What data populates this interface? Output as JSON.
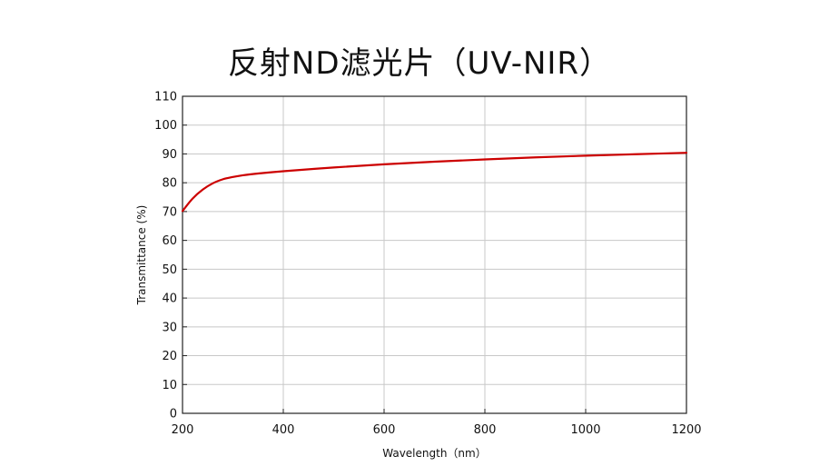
{
  "chart_data": {
    "type": "line",
    "title": "反射ND滤光片（UV-NIR）",
    "xlabel": "Wavelength（nm）",
    "ylabel": "Transmittance (%)",
    "xlim": [
      200,
      1200
    ],
    "ylim": [
      0,
      110
    ],
    "xticks": [
      200,
      400,
      600,
      800,
      1000,
      1200
    ],
    "yticks": [
      0,
      10,
      20,
      30,
      40,
      50,
      60,
      70,
      80,
      90,
      100,
      110
    ],
    "grid": true,
    "legend": "none",
    "series": [
      {
        "color": "#cc0000",
        "x": [
          200,
          220,
          240,
          260,
          280,
          300,
          320,
          350,
          400,
          500,
          600,
          700,
          800,
          900,
          1000,
          1100,
          1200
        ],
        "y": [
          70.2,
          74.5,
          77.6,
          79.8,
          81.2,
          82.0,
          82.6,
          83.2,
          84.0,
          85.3,
          86.4,
          87.3,
          88.1,
          88.8,
          89.4,
          89.9,
          90.4
        ]
      }
    ]
  }
}
